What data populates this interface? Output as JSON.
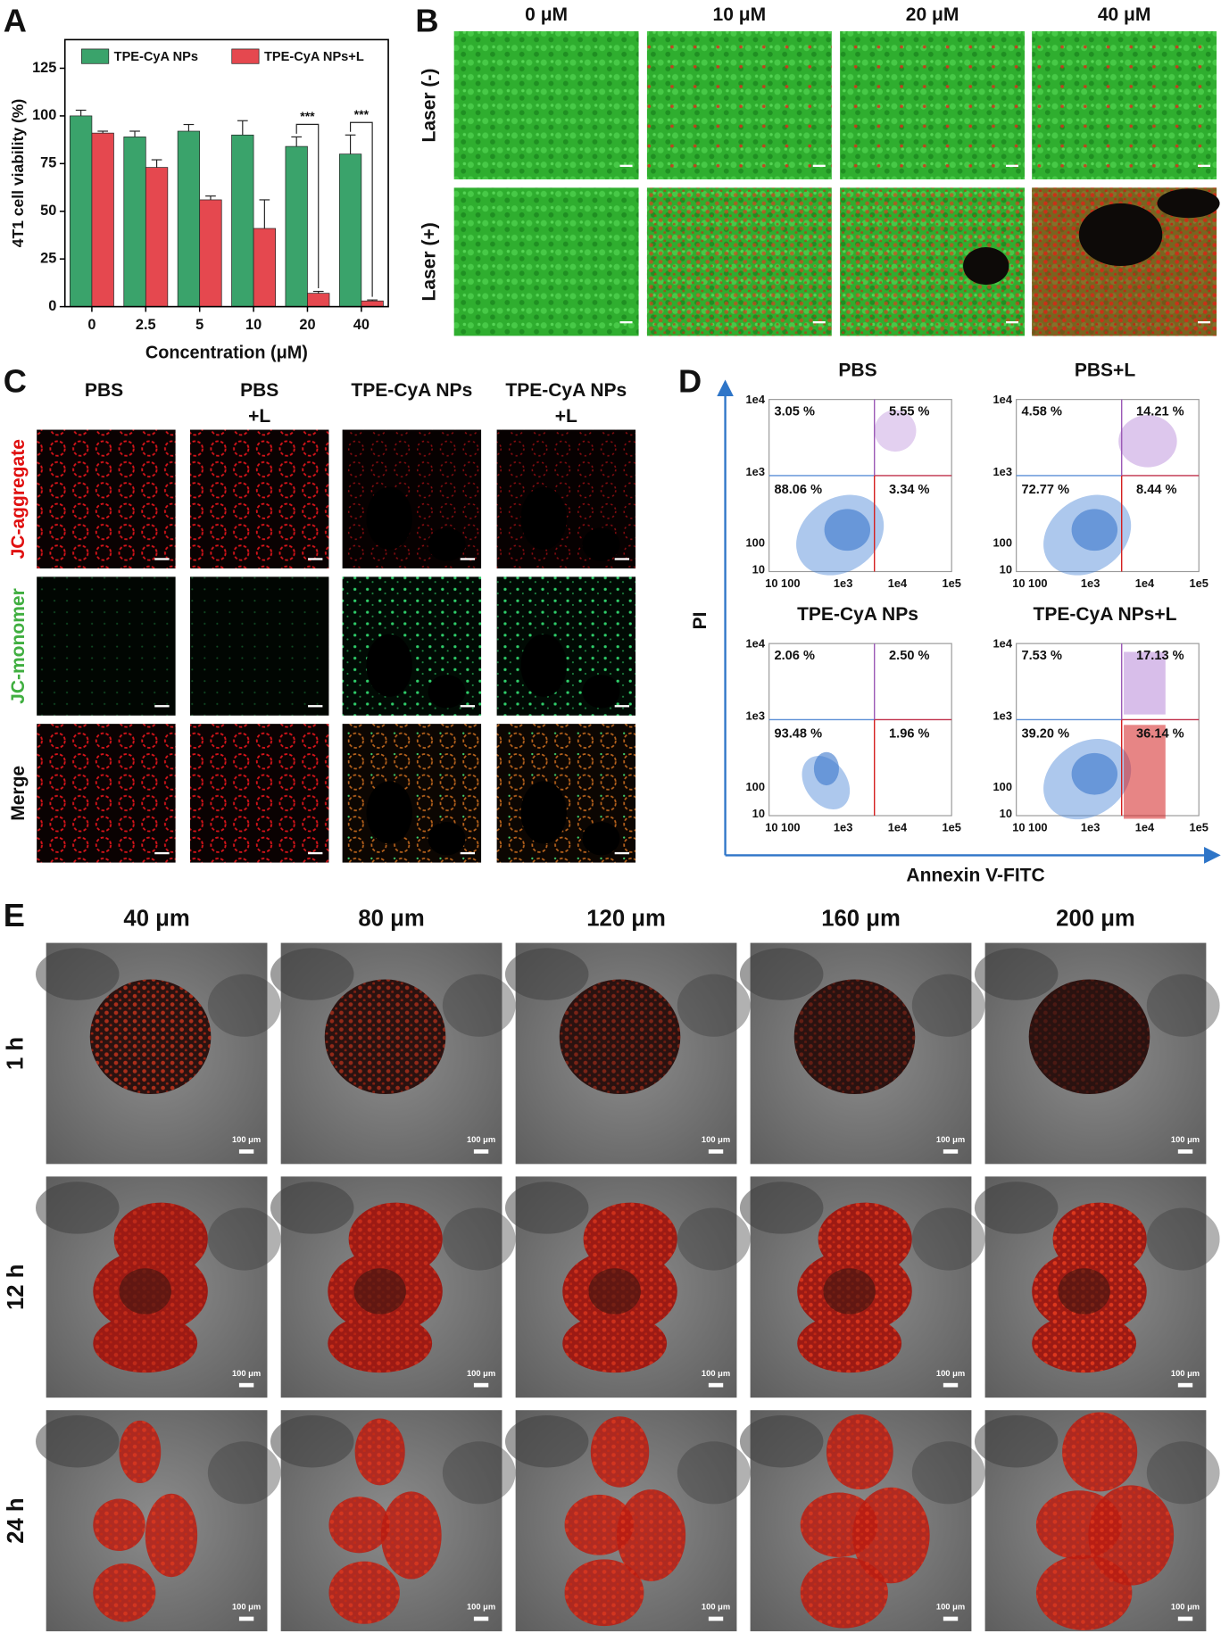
{
  "panel_labels": [
    "A",
    "B",
    "C",
    "D",
    "E"
  ],
  "chart_data": {
    "type": "bar",
    "x_label": "Concentration (μM)",
    "y_label": "4T1 cell viability (%)",
    "categories": [
      "0",
      "2.5",
      "5",
      "10",
      "20",
      "40"
    ],
    "series": [
      {
        "name": "TPE-CyA NPs",
        "color": "#3aa36b",
        "values": [
          100,
          89,
          92,
          90,
          84,
          80
        ],
        "errors": [
          3,
          3,
          3.5,
          7.5,
          5,
          10
        ]
      },
      {
        "name": "TPE-CyA NPs+L",
        "color": "#e5484f",
        "values": [
          91,
          73,
          56,
          41,
          7,
          3
        ],
        "errors": [
          1,
          4,
          2,
          15,
          1,
          0.5
        ]
      }
    ],
    "ylim": [
      0,
      140
    ],
    "yticks": [
      0,
      25,
      50,
      75,
      100,
      125
    ],
    "annotations": [
      {
        "text": "***",
        "x": "20"
      },
      {
        "text": "***",
        "x": "40"
      }
    ]
  },
  "panel_b": {
    "columns": [
      "0 μM",
      "10 μM",
      "20 μM",
      "40 μM"
    ],
    "rows": [
      "Laser (-)",
      "Laser (+)"
    ]
  },
  "panel_c": {
    "columns": [
      [
        "PBS"
      ],
      [
        "PBS",
        "+L"
      ],
      [
        "TPE-CyA NPs"
      ],
      [
        "TPE-CyA NPs",
        "+L"
      ]
    ],
    "rows": [
      "JC-aggregate",
      "JC-monomer",
      "Merge"
    ]
  },
  "panel_d": {
    "y_label": "PI",
    "x_label": "Annexin V-FITC",
    "yticks": [
      "1e4",
      "1e3",
      "100",
      "10"
    ],
    "xticks": [
      "10 100",
      "1e3",
      "1e4",
      "1e5"
    ],
    "plots": [
      {
        "title": "PBS",
        "quadrants": [
          "3.05 %",
          "5.55 %",
          "88.06 %",
          "3.34 %"
        ]
      },
      {
        "title": "PBS+L",
        "quadrants": [
          "4.58 %",
          "14.21 %",
          "72.77 %",
          "8.44 %"
        ]
      },
      {
        "title": "TPE-CyA NPs",
        "quadrants": [
          "2.06 %",
          "2.50 %",
          "93.48 %",
          "1.96 %"
        ]
      },
      {
        "title": "TPE-CyA NPs+L",
        "quadrants": [
          "7.53 %",
          "17.13 %",
          "39.20 %",
          "36.14 %"
        ]
      }
    ]
  },
  "panel_e": {
    "columns": [
      "40 μm",
      "80 μm",
      "120 μm",
      "160 μm",
      "200 μm"
    ],
    "rows": [
      "1 h",
      "12 h",
      "24 h"
    ],
    "scale_bar": "100 μm"
  }
}
